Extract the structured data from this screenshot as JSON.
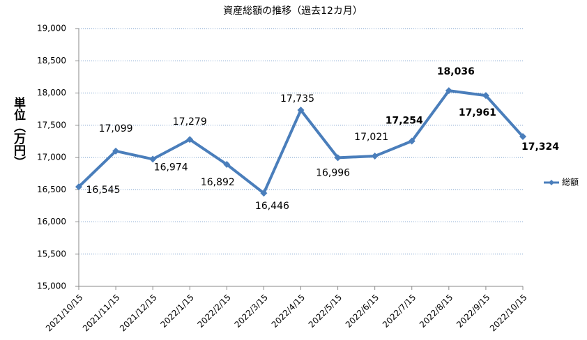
{
  "chart_data": {
    "type": "line",
    "title": "資産総額の推移（過去12カ月）",
    "y_label": "単位（万円）",
    "categories": [
      "2021/10/15",
      "2021/11/15",
      "2021/12/15",
      "2022/1/15",
      "2022/2/15",
      "2022/3/15",
      "2022/4/15",
      "2022/5/15",
      "2022/6/15",
      "2022/7/15",
      "2022/8/15",
      "2022/9/15",
      "2022/10/15"
    ],
    "series": [
      {
        "name": "総額",
        "color": "#4a7ebb",
        "values": [
          16545,
          17099,
          16974,
          17279,
          16892,
          16446,
          17735,
          16996,
          17021,
          17254,
          18036,
          17961,
          17324
        ],
        "value_labels": [
          "16,545",
          "17,099",
          "16,974",
          "17,279",
          "16,892",
          "16,446",
          "17,735",
          "16,996",
          "17,021",
          "17,254",
          "18,036",
          "17,961",
          "17,324"
        ]
      }
    ],
    "ylim": [
      15000,
      19000
    ],
    "yticks": [
      {
        "value": 15000,
        "label": "15,000"
      },
      {
        "value": 15500,
        "label": "15,500"
      },
      {
        "value": 16000,
        "label": "16,000"
      },
      {
        "value": 16500,
        "label": "16,500"
      },
      {
        "value": 17000,
        "label": "17,000"
      },
      {
        "value": 17500,
        "label": "17,500"
      },
      {
        "value": 18000,
        "label": "18,000"
      },
      {
        "value": 18500,
        "label": "18,500"
      },
      {
        "value": 19000,
        "label": "19,000"
      }
    ],
    "grid": true,
    "legend": "right"
  }
}
